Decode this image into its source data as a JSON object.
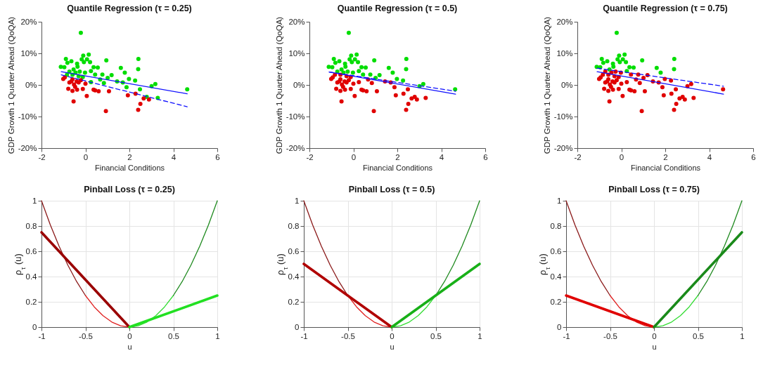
{
  "chart_data": [
    {
      "type": "scatter",
      "title": "Quantile Regression (τ = 0.25)",
      "xlabel": "Financial Conditions",
      "ylabel": "GDP Growth 1 Quarter Ahead (QoQA)",
      "xlim": [
        -2,
        6
      ],
      "xticks": [
        -2,
        0,
        2,
        4,
        6
      ],
      "ylim": [
        -20,
        20
      ],
      "yticks": [
        {
          "value": -20,
          "label": "-20%"
        },
        {
          "value": -10,
          "label": "-10%"
        },
        {
          "value": 0,
          "label": "0%"
        },
        {
          "value": 10,
          "label": "10%"
        },
        {
          "value": 20,
          "label": "20%"
        }
      ],
      "grid": false,
      "series": [
        {
          "type": "scatter",
          "color": "#00dd00",
          "x": [
            -0.21,
            -0.1,
            0.15,
            -0.89,
            -0.64,
            -0.38,
            -1.12,
            -0.96,
            -0.82,
            -0.17,
            -0.07,
            0.07,
            0.21,
            0.95,
            2.41,
            2.4,
            1.61,
            1.79,
            1.19,
            1.98,
            2.26,
            1.44,
            1.7,
            1.87,
            2.48,
            3.01,
            3.18,
            2.79,
            3.29,
            4.63,
            1.01,
            0.84,
            0.67,
            0.77,
            0.56,
            0.37,
            0.25,
            0.44,
            -0.02,
            -0.36,
            -0.54,
            -0.73,
            -0.59,
            -0.31,
            -0.12,
            0.25,
            -0.84,
            -0.45,
            -0.26
          ],
          "values": [
            16.5,
            9.3,
            9.6,
            8.2,
            7.5,
            6.7,
            5.7,
            5.6,
            7.0,
            8.1,
            7.2,
            8.1,
            7.2,
            7.8,
            8.2,
            5.0,
            5.4,
            3.9,
            3.1,
            1.9,
            1.4,
            1.1,
            0.8,
            -0.7,
            -1.4,
            -0.4,
            0.3,
            -3.8,
            -4.1,
            -1.4,
            2.2,
            0.6,
            1.7,
            3.3,
            5.5,
            5.6,
            4.4,
            3.3,
            3.9,
            5.8,
            4.9,
            4.2,
            3.2,
            2.8,
            2.5,
            0.9,
            3.2,
            3.9,
            4.2
          ]
        },
        {
          "type": "scatter",
          "color": "#e00000",
          "x": [
            -1.01,
            -0.94,
            -0.73,
            -0.78,
            -0.59,
            -0.54,
            -0.64,
            -0.52,
            -0.47,
            -0.38,
            -0.4,
            -0.31,
            -0.59,
            -0.12,
            0.0,
            0.06,
            0.37,
            0.44,
            0.6,
            0.93,
            1.07,
            1.93,
            2.28,
            2.5,
            2.4,
            2.65,
            2.89,
            -0.21
          ],
          "values": [
            1.9,
            2.4,
            0.8,
            -1.2,
            -1.9,
            -5.2,
            1.1,
            0.1,
            -0.6,
            -1.5,
            1.1,
            0.8,
            1.8,
            -1.3,
            0.4,
            -3.5,
            -1.5,
            -1.7,
            -2.0,
            -8.3,
            -2.0,
            -3.3,
            -2.8,
            -6.0,
            -7.9,
            -4.3,
            -4.6,
            1.5
          ]
        },
        {
          "type": "line",
          "color": "#1010ff",
          "x": [
            -1.1,
            4.63
          ],
          "values": [
            4.2,
            -2.8
          ]
        },
        {
          "type": "line",
          "color": "#1010ff",
          "line_style": "dashed",
          "x": [
            -1.1,
            4.63
          ],
          "values": [
            3.2,
            -6.9
          ]
        }
      ]
    },
    {
      "type": "scatter",
      "title": "Quantile Regression (τ = 0.5)",
      "xlabel": "Financial Conditions",
      "ylabel": "GDP Growth 1 Quarter Ahead (QoQA)",
      "xlim": [
        -2,
        6
      ],
      "xticks": [
        -2,
        0,
        2,
        4,
        6
      ],
      "ylim": [
        -20,
        20
      ],
      "yticks": [
        {
          "value": -20,
          "label": "-20%"
        },
        {
          "value": -10,
          "label": "-10%"
        },
        {
          "value": 0,
          "label": "0%"
        },
        {
          "value": 10,
          "label": "10%"
        },
        {
          "value": 20,
          "label": "20%"
        }
      ],
      "grid": false,
      "series": [
        {
          "type": "scatter",
          "color": "#00dd00",
          "x": [
            -0.21,
            -0.1,
            0.15,
            -0.89,
            -0.64,
            -0.38,
            -1.12,
            -0.96,
            -0.82,
            -0.17,
            -0.07,
            0.07,
            0.21,
            0.95,
            2.41,
            2.4,
            1.61,
            1.79,
            1.19,
            1.98,
            2.26,
            3.01,
            3.18,
            4.63,
            1.01,
            0.77,
            0.56,
            0.37,
            0.25,
            0.44,
            -0.02,
            -0.36,
            -0.54,
            -0.73,
            -0.45,
            -0.26
          ],
          "values": [
            16.5,
            9.3,
            9.6,
            8.2,
            7.5,
            6.7,
            5.7,
            5.6,
            7.0,
            8.1,
            7.2,
            8.1,
            7.2,
            7.8,
            8.2,
            5.0,
            5.4,
            3.9,
            3.1,
            1.9,
            1.4,
            -0.4,
            0.3,
            -1.4,
            2.2,
            3.3,
            5.5,
            5.6,
            4.4,
            3.3,
            3.9,
            5.8,
            4.9,
            4.2,
            3.9,
            4.2
          ]
        },
        {
          "type": "scatter",
          "color": "#e00000",
          "x": [
            1.44,
            1.7,
            1.87,
            2.48,
            2.79,
            3.29,
            0.84,
            0.67,
            -0.59,
            -0.31,
            -0.12,
            0.25,
            -0.84,
            -1.01,
            -0.94,
            -0.73,
            -0.78,
            -0.59,
            -0.54,
            -0.64,
            -0.52,
            -0.47,
            -0.38,
            -0.4,
            -0.31,
            -0.59,
            -0.12,
            0.0,
            0.06,
            0.37,
            0.44,
            0.6,
            0.93,
            1.07,
            1.93,
            2.28,
            2.5,
            2.4,
            2.65,
            2.89,
            -0.21
          ],
          "values": [
            1.1,
            0.8,
            -0.7,
            -1.4,
            -3.8,
            -4.1,
            0.6,
            1.7,
            3.2,
            2.8,
            2.5,
            0.9,
            3.2,
            1.9,
            2.4,
            0.8,
            -1.2,
            -1.9,
            -5.2,
            1.1,
            0.1,
            -0.6,
            -1.5,
            1.1,
            0.8,
            1.8,
            -1.3,
            0.4,
            -3.5,
            -1.5,
            -1.7,
            -2.0,
            -8.3,
            -2.0,
            -3.3,
            -2.8,
            -6.0,
            -7.9,
            -4.3,
            -4.6,
            1.5
          ]
        },
        {
          "type": "line",
          "color": "#1010ff",
          "x": [
            -1.1,
            4.65
          ],
          "values": [
            4.1,
            -2.9
          ]
        },
        {
          "type": "line",
          "color": "#1010ff",
          "line_style": "dashed",
          "x": [
            -1.1,
            4.65
          ],
          "values": [
            4.1,
            -2.0
          ]
        }
      ]
    },
    {
      "type": "scatter",
      "title": "Quantile Regression (τ = 0.75)",
      "xlabel": "Financial Conditions",
      "ylabel": "GDP Growth 1 Quarter Ahead (QoQA)",
      "xlim": [
        -2,
        6
      ],
      "xticks": [
        -2,
        0,
        2,
        4,
        6
      ],
      "ylim": [
        -20,
        20
      ],
      "yticks": [
        {
          "value": -20,
          "label": "-20%"
        },
        {
          "value": -10,
          "label": "-10%"
        },
        {
          "value": 0,
          "label": "0%"
        },
        {
          "value": 10,
          "label": "10%"
        },
        {
          "value": 20,
          "label": "20%"
        }
      ],
      "grid": false,
      "series": [
        {
          "type": "scatter",
          "color": "#00dd00",
          "x": [
            -0.21,
            -0.1,
            0.15,
            -0.89,
            -0.64,
            -0.38,
            -1.12,
            -0.96,
            -0.82,
            -0.17,
            -0.07,
            0.07,
            0.21,
            0.95,
            2.41,
            2.4,
            1.61,
            1.79,
            0.56,
            0.37,
            0.25,
            -0.36,
            -0.54
          ],
          "values": [
            16.5,
            9.3,
            9.6,
            8.2,
            7.5,
            6.7,
            5.7,
            5.6,
            7.0,
            8.1,
            7.2,
            8.1,
            7.2,
            7.8,
            8.2,
            5.0,
            5.4,
            3.9,
            5.5,
            5.6,
            4.4,
            5.8,
            4.9
          ]
        },
        {
          "type": "scatter",
          "color": "#e00000",
          "x": [
            1.19,
            1.98,
            2.26,
            1.44,
            1.7,
            1.87,
            2.48,
            3.01,
            3.18,
            2.79,
            3.29,
            4.63,
            1.01,
            0.84,
            0.67,
            0.77,
            0.44,
            -0.02,
            -0.73,
            -0.59,
            -0.31,
            -0.12,
            0.25,
            -0.84,
            -0.45,
            -0.26,
            -1.01,
            -0.94,
            -0.73,
            -0.78,
            -0.59,
            -0.54,
            -0.64,
            -0.52,
            -0.47,
            -0.38,
            -0.4,
            -0.31,
            -0.59,
            -0.12,
            0.0,
            0.06,
            0.37,
            0.44,
            0.6,
            0.93,
            1.07,
            1.93,
            2.28,
            2.5,
            2.4,
            2.65,
            2.89,
            -0.21
          ],
          "values": [
            3.1,
            1.9,
            1.4,
            1.1,
            0.8,
            -0.7,
            -1.4,
            -0.4,
            0.3,
            -3.8,
            -4.1,
            -1.4,
            2.2,
            0.6,
            1.7,
            3.3,
            3.3,
            3.9,
            4.2,
            3.2,
            2.8,
            2.5,
            0.9,
            3.2,
            3.9,
            4.2,
            1.9,
            2.4,
            0.8,
            -1.2,
            -1.9,
            -5.2,
            1.1,
            0.1,
            -0.6,
            -1.5,
            1.1,
            0.8,
            1.8,
            -1.3,
            0.4,
            -3.5,
            -1.5,
            -1.7,
            -2.0,
            -8.3,
            -2.0,
            -3.3,
            -2.8,
            -6.0,
            -7.9,
            -4.3,
            -4.6,
            1.5
          ]
        },
        {
          "type": "line",
          "color": "#1010ff",
          "x": [
            -1.1,
            4.65
          ],
          "values": [
            4.2,
            -2.9
          ]
        },
        {
          "type": "line",
          "color": "#1010ff",
          "line_style": "dashed",
          "x": [
            -1.1,
            4.65
          ],
          "values": [
            5.3,
            -0.4
          ]
        }
      ]
    },
    {
      "type": "line",
      "title": "Pinball Loss (τ = 0.25)",
      "xlabel": "u",
      "ylabel": "ρ$_{τ}$ (u)",
      "xlim": [
        -1,
        1
      ],
      "xticks": [
        -1,
        -0.5,
        0,
        0.5,
        1
      ],
      "ylim": [
        0,
        1
      ],
      "yticks": [
        0,
        0.2,
        0.4,
        0.6,
        0.8,
        1
      ],
      "grid": true,
      "series": [
        {
          "color": "#8b1a1a",
          "x": [
            -1,
            -0.9,
            -0.8,
            -0.7,
            -0.6,
            -0.5
          ],
          "values": [
            1,
            0.81,
            0.64,
            0.49,
            0.36,
            0.25
          ]
        },
        {
          "color": "#e02020",
          "x": [
            -0.5,
            -0.4,
            -0.3,
            -0.2,
            -0.1,
            0
          ],
          "values": [
            0.25,
            0.16,
            0.09,
            0.04,
            0.01,
            0
          ]
        },
        {
          "color": "#33dd33",
          "x": [
            0,
            0.1,
            0.2,
            0.3,
            0.4,
            0.5
          ],
          "values": [
            0,
            0.01,
            0.04,
            0.09,
            0.16,
            0.25
          ]
        },
        {
          "color": "#1f8a1f",
          "x": [
            0.5,
            0.6,
            0.7,
            0.8,
            0.9,
            1
          ],
          "values": [
            0.25,
            0.36,
            0.49,
            0.64,
            0.81,
            1
          ]
        },
        {
          "color": "#9a0000",
          "x": [
            -1,
            0
          ],
          "values": [
            0.75,
            0
          ]
        },
        {
          "color": "#22e022",
          "x": [
            0,
            1
          ],
          "values": [
            0,
            0.25
          ]
        }
      ]
    },
    {
      "type": "line",
      "title": "Pinball Loss (τ = 0.5)",
      "xlabel": "u",
      "ylabel": "ρ$_{τ}$ (u)",
      "xlim": [
        -1,
        1
      ],
      "xticks": [
        -1,
        -0.5,
        0,
        0.5,
        1
      ],
      "ylim": [
        0,
        1
      ],
      "yticks": [
        0,
        0.2,
        0.4,
        0.6,
        0.8,
        1
      ],
      "grid": true,
      "series": [
        {
          "color": "#8b1a1a",
          "x": [
            -1,
            -0.9,
            -0.8,
            -0.7,
            -0.6,
            -0.5
          ],
          "values": [
            1,
            0.81,
            0.64,
            0.49,
            0.36,
            0.25
          ]
        },
        {
          "color": "#e02020",
          "x": [
            -0.5,
            -0.4,
            -0.3,
            -0.2,
            -0.1,
            0
          ],
          "values": [
            0.25,
            0.16,
            0.09,
            0.04,
            0.01,
            0
          ]
        },
        {
          "color": "#33dd33",
          "x": [
            0,
            0.1,
            0.2,
            0.3,
            0.4,
            0.5
          ],
          "values": [
            0,
            0.01,
            0.04,
            0.09,
            0.16,
            0.25
          ]
        },
        {
          "color": "#1f8a1f",
          "x": [
            0.5,
            0.6,
            0.7,
            0.8,
            0.9,
            1
          ],
          "values": [
            0.25,
            0.36,
            0.49,
            0.64,
            0.81,
            1
          ]
        },
        {
          "color": "#b00000",
          "x": [
            -1,
            0
          ],
          "values": [
            0.5,
            0
          ]
        },
        {
          "color": "#18b018",
          "x": [
            0,
            1
          ],
          "values": [
            0,
            0.5
          ]
        }
      ]
    },
    {
      "type": "line",
      "title": "Pinball Loss (τ = 0.75)",
      "xlabel": "u",
      "ylabel": "ρ$_{τ}$ (u)",
      "xlim": [
        -1,
        1
      ],
      "xticks": [
        -1,
        -0.5,
        0,
        0.5,
        1
      ],
      "ylim": [
        0,
        1
      ],
      "yticks": [
        0,
        0.2,
        0.4,
        0.6,
        0.8,
        1
      ],
      "grid": true,
      "series": [
        {
          "color": "#8b1a1a",
          "x": [
            -1,
            -0.9,
            -0.8,
            -0.7,
            -0.6,
            -0.5
          ],
          "values": [
            1,
            0.81,
            0.64,
            0.49,
            0.36,
            0.25
          ]
        },
        {
          "color": "#e02020",
          "x": [
            -0.5,
            -0.4,
            -0.3,
            -0.2,
            -0.1,
            0
          ],
          "values": [
            0.25,
            0.16,
            0.09,
            0.04,
            0.01,
            0
          ]
        },
        {
          "color": "#33dd33",
          "x": [
            0,
            0.1,
            0.2,
            0.3,
            0.4,
            0.5
          ],
          "values": [
            0,
            0.01,
            0.04,
            0.09,
            0.16,
            0.25
          ]
        },
        {
          "color": "#1f8a1f",
          "x": [
            0.5,
            0.6,
            0.7,
            0.8,
            0.9,
            1
          ],
          "values": [
            0.25,
            0.36,
            0.49,
            0.64,
            0.81,
            1
          ]
        },
        {
          "color": "#e00000",
          "x": [
            -1,
            0
          ],
          "values": [
            0.25,
            0
          ]
        },
        {
          "color": "#1a8a1a",
          "x": [
            0,
            1
          ],
          "values": [
            0,
            0.75
          ]
        }
      ]
    }
  ]
}
